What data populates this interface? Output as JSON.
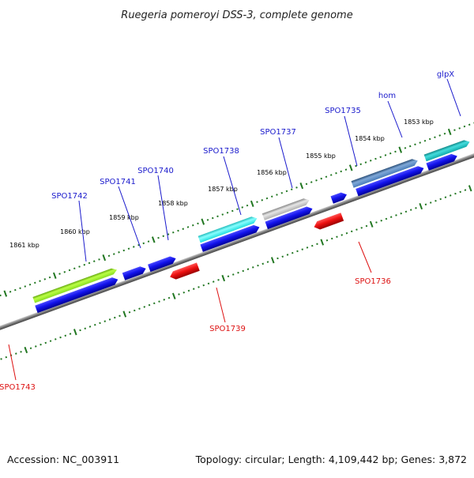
{
  "title": "Ruegeria pomeroyi DSS-3, complete genome",
  "footer": {
    "accession": "Accession: NC_003911",
    "summary": "Topology: circular; Length: 4,109,442 bp; Genes: 3,872"
  },
  "colors": {
    "forward_label": "#1a1acc",
    "reverse_label": "#dd1111",
    "tick": "#227722",
    "backbone": "#808080"
  },
  "kbp_ticks": [
    "1853 kbp",
    "1854 kbp",
    "1855 kbp",
    "1856 kbp",
    "1857 kbp",
    "1858 kbp",
    "1859 kbp",
    "1860 kbp",
    "1861 kbp"
  ],
  "genes": [
    {
      "name": "SPO1742",
      "strand": "forward",
      "color": "lime"
    },
    {
      "name": "SPO1741",
      "strand": "forward",
      "color": "blue"
    },
    {
      "name": "SPO1740",
      "strand": "forward",
      "color": "blue"
    },
    {
      "name": "SPO1738",
      "strand": "forward",
      "color": "cyan"
    },
    {
      "name": "SPO1737",
      "strand": "forward",
      "color": "gray"
    },
    {
      "name": "SPO1735",
      "strand": "forward",
      "color": "blue"
    },
    {
      "name": "hom",
      "strand": "forward",
      "color": "steelblue"
    },
    {
      "name": "glpX",
      "strand": "forward",
      "color": "teal"
    },
    {
      "name": "SPO1743",
      "strand": "reverse",
      "color": "red"
    },
    {
      "name": "SPO1739",
      "strand": "reverse",
      "color": "red"
    },
    {
      "name": "SPO1736",
      "strand": "reverse",
      "color": "red"
    }
  ]
}
